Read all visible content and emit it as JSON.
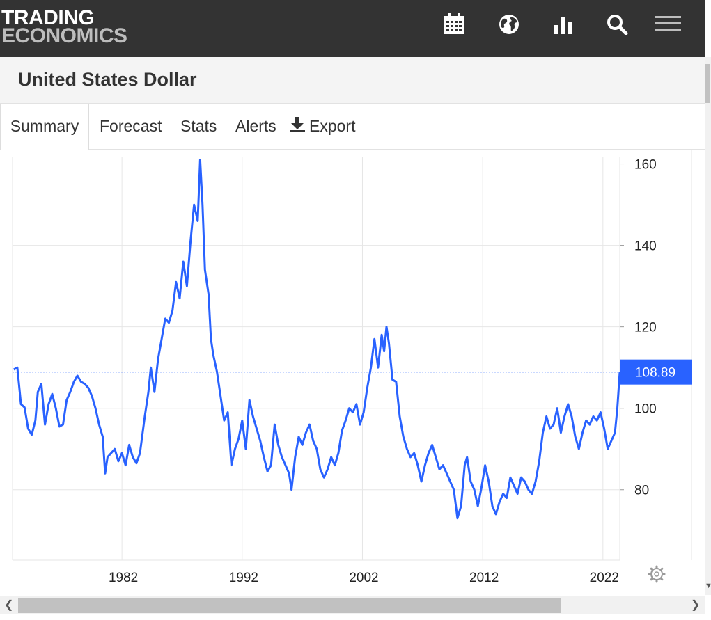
{
  "header": {
    "logo_line1": "TRADING",
    "logo_line2": "ECONOMICS",
    "icons": [
      "calendar-icon",
      "globe-icon",
      "bar-chart-icon",
      "search-icon",
      "menu-icon"
    ]
  },
  "page": {
    "title": "United States Dollar"
  },
  "tabs": [
    {
      "label": "Summary",
      "active": true
    },
    {
      "label": "Forecast"
    },
    {
      "label": "Stats"
    },
    {
      "label": "Alerts"
    },
    {
      "label": "Export",
      "icon": "download-icon"
    }
  ],
  "colors": {
    "line": "#2962ff",
    "price_label_bg": "#2962ff",
    "grid": "#e6e6e6",
    "header_bg": "#333333"
  },
  "chart_data": {
    "type": "line",
    "title": "",
    "xlabel": "",
    "ylabel": "",
    "x_ticks": [
      "1982",
      "1992",
      "2002",
      "2012",
      "2022"
    ],
    "y_ticks": [
      80,
      100,
      120,
      140,
      160
    ],
    "xlim": [
      1972.9,
      2023.4
    ],
    "ylim": [
      62.7,
      161.8
    ],
    "last_value": 108.89,
    "last_value_label": "108.89",
    "series": [
      {
        "points": [
          [
            1973.0,
            109.5
          ],
          [
            1973.3,
            110.0
          ],
          [
            1973.6,
            101.0
          ],
          [
            1973.9,
            100.2
          ],
          [
            1974.2,
            95.0
          ],
          [
            1974.5,
            93.5
          ],
          [
            1974.8,
            97.0
          ],
          [
            1975.0,
            104.0
          ],
          [
            1975.3,
            106.0
          ],
          [
            1975.6,
            96.0
          ],
          [
            1975.9,
            101.0
          ],
          [
            1976.2,
            103.5
          ],
          [
            1976.5,
            100.0
          ],
          [
            1976.8,
            95.5
          ],
          [
            1977.1,
            96.0
          ],
          [
            1977.4,
            102.0
          ],
          [
            1977.7,
            104.0
          ],
          [
            1978.0,
            106.5
          ],
          [
            1978.3,
            108.0
          ],
          [
            1978.6,
            106.5
          ],
          [
            1978.9,
            106.0
          ],
          [
            1979.2,
            105.0
          ],
          [
            1979.5,
            103.0
          ],
          [
            1979.8,
            100.0
          ],
          [
            1980.1,
            96.0
          ],
          [
            1980.4,
            93.0
          ],
          [
            1980.6,
            84.0
          ],
          [
            1980.8,
            88.0
          ],
          [
            1981.1,
            89.0
          ],
          [
            1981.4,
            90.0
          ],
          [
            1981.7,
            87.0
          ],
          [
            1982.0,
            89.0
          ],
          [
            1982.3,
            86.0
          ],
          [
            1982.6,
            91.0
          ],
          [
            1982.9,
            88.0
          ],
          [
            1983.2,
            86.5
          ],
          [
            1983.5,
            89.0
          ],
          [
            1983.9,
            98.0
          ],
          [
            1984.2,
            104.0
          ],
          [
            1984.4,
            110.0
          ],
          [
            1984.7,
            104.0
          ],
          [
            1985.0,
            112.0
          ],
          [
            1985.3,
            117.0
          ],
          [
            1985.6,
            122.0
          ],
          [
            1985.9,
            121.0
          ],
          [
            1986.2,
            124.0
          ],
          [
            1986.5,
            131.0
          ],
          [
            1986.8,
            127.0
          ],
          [
            1987.1,
            136.0
          ],
          [
            1987.4,
            130.0
          ],
          [
            1987.7,
            141.0
          ],
          [
            1988.0,
            150.0
          ],
          [
            1988.3,
            146.0
          ],
          [
            1988.5,
            161.0
          ],
          [
            1988.7,
            150.0
          ],
          [
            1988.9,
            134.0
          ],
          [
            1989.2,
            128.0
          ],
          [
            1989.4,
            117.0
          ],
          [
            1989.6,
            113.0
          ],
          [
            1989.9,
            109.0
          ],
          [
            1990.2,
            103.0
          ],
          [
            1990.5,
            97.0
          ],
          [
            1990.8,
            99.0
          ],
          [
            1991.1,
            86.0
          ],
          [
            1991.4,
            90.0
          ],
          [
            1991.7,
            92.5
          ],
          [
            1992.0,
            97.0
          ],
          [
            1992.3,
            90.0
          ],
          [
            1992.6,
            102.0
          ],
          [
            1992.9,
            98.0
          ],
          [
            1993.2,
            95.0
          ],
          [
            1993.5,
            92.0
          ],
          [
            1993.8,
            88.0
          ],
          [
            1994.1,
            84.5
          ],
          [
            1994.4,
            86.0
          ],
          [
            1994.7,
            96.0
          ],
          [
            1995.0,
            91.0
          ],
          [
            1995.3,
            88.0
          ],
          [
            1995.6,
            86.0
          ],
          [
            1995.9,
            84.0
          ],
          [
            1996.1,
            80.0
          ],
          [
            1996.4,
            88.0
          ],
          [
            1996.7,
            93.0
          ],
          [
            1997.0,
            91.0
          ],
          [
            1997.3,
            94.0
          ],
          [
            1997.6,
            96.0
          ],
          [
            1997.9,
            92.0
          ],
          [
            1998.2,
            90.0
          ],
          [
            1998.5,
            85.0
          ],
          [
            1998.8,
            83.0
          ],
          [
            1999.1,
            85.0
          ],
          [
            1999.4,
            88.0
          ],
          [
            1999.7,
            86.0
          ],
          [
            2000.0,
            89.0
          ],
          [
            2000.3,
            94.5
          ],
          [
            2000.6,
            97.0
          ],
          [
            2000.9,
            100.0
          ],
          [
            2001.2,
            99.0
          ],
          [
            2001.5,
            101.0
          ],
          [
            2001.8,
            96.0
          ],
          [
            2002.1,
            99.0
          ],
          [
            2002.4,
            105.0
          ],
          [
            2002.7,
            110.0
          ],
          [
            2003.0,
            117.0
          ],
          [
            2003.3,
            110.0
          ],
          [
            2003.6,
            118.0
          ],
          [
            2003.8,
            114.0
          ],
          [
            2004.0,
            120.0
          ],
          [
            2004.2,
            116.0
          ],
          [
            2004.5,
            107.0
          ],
          [
            2004.8,
            106.5
          ],
          [
            2005.1,
            98.0
          ],
          [
            2005.4,
            93.0
          ],
          [
            2005.7,
            90.0
          ],
          [
            2006.0,
            88.0
          ],
          [
            2006.3,
            89.0
          ],
          [
            2006.6,
            86.0
          ],
          [
            2006.9,
            82.0
          ],
          [
            2007.2,
            86.0
          ],
          [
            2007.5,
            89.0
          ],
          [
            2007.8,
            91.0
          ],
          [
            2008.1,
            88.0
          ],
          [
            2008.4,
            85.0
          ],
          [
            2008.7,
            86.0
          ],
          [
            2009.0,
            84.0
          ],
          [
            2009.3,
            82.0
          ],
          [
            2009.6,
            80.0
          ],
          [
            2009.9,
            73.0
          ],
          [
            2010.2,
            76.0
          ],
          [
            2010.5,
            86.0
          ],
          [
            2010.7,
            88.0
          ],
          [
            2011.0,
            82.0
          ],
          [
            2011.3,
            80.0
          ],
          [
            2011.6,
            76.0
          ],
          [
            2011.9,
            80.5
          ],
          [
            2012.2,
            86.0
          ],
          [
            2012.5,
            82.0
          ],
          [
            2012.8,
            76.0
          ],
          [
            2013.1,
            74.0
          ],
          [
            2013.4,
            77.0
          ],
          [
            2013.7,
            79.0
          ],
          [
            2014.0,
            78.0
          ],
          [
            2014.3,
            83.0
          ],
          [
            2014.6,
            81.0
          ],
          [
            2014.9,
            79.0
          ],
          [
            2015.2,
            83.0
          ],
          [
            2015.5,
            82.0
          ],
          [
            2015.8,
            80.0
          ],
          [
            2016.1,
            79.0
          ],
          [
            2016.4,
            82.0
          ],
          [
            2016.7,
            87.0
          ],
          [
            2017.0,
            94.0
          ],
          [
            2017.3,
            98.0
          ],
          [
            2017.6,
            95.0
          ],
          [
            2017.9,
            96.0
          ],
          [
            2018.2,
            100.0
          ],
          [
            2018.5,
            94.0
          ],
          [
            2018.8,
            98.0
          ],
          [
            2019.1,
            101.0
          ],
          [
            2019.4,
            98.0
          ],
          [
            2019.7,
            93.0
          ],
          [
            2020.0,
            90.0
          ],
          [
            2020.3,
            94.0
          ],
          [
            2020.6,
            97.0
          ],
          [
            2020.9,
            96.0
          ],
          [
            2021.2,
            98.0
          ],
          [
            2021.5,
            97.0
          ],
          [
            2021.8,
            99.0
          ],
          [
            2022.1,
            95.0
          ],
          [
            2022.4,
            90.0
          ],
          [
            2022.7,
            92.0
          ],
          [
            2023.0,
            94.0
          ],
          [
            2023.2,
            100.0
          ],
          [
            2023.4,
            108.89
          ]
        ]
      }
    ]
  }
}
